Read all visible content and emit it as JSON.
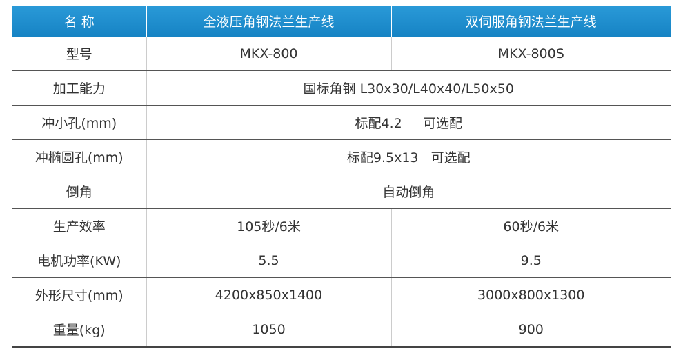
{
  "table": {
    "header": [
      "名 称",
      "全液压角钢法兰生产线",
      "双伺服角钢法兰生产线"
    ],
    "rows": [
      [
        "型号",
        "MKX-800",
        "MKX-800S"
      ],
      [
        "加工能力",
        "国标角钢 L30x30/L40x40/L50x50"
      ],
      [
        "冲小孔(mm)",
        "标配4.2     可选配"
      ],
      [
        "冲椭圆孔(mm)",
        "标配9.5x13   可选配"
      ],
      [
        "倒角",
        "自动倒角"
      ],
      [
        "生产效率",
        "105秒/6米",
        "60秒/6米"
      ],
      [
        "电机功率(KW)",
        "5.5",
        "9.5"
      ],
      [
        "外形尺寸(mm)",
        "4200x850x1400",
        "3000x800x1300"
      ],
      [
        "重量(kg)",
        "1050",
        "900"
      ]
    ]
  }
}
